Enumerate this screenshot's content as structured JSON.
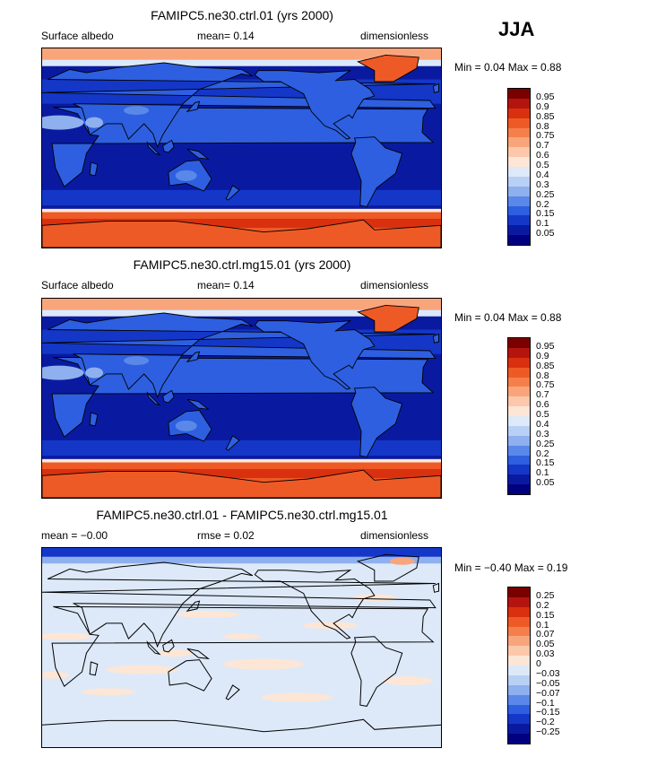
{
  "season": "JJA",
  "panels": [
    {
      "title": "FAMIPC5.ne30.ctrl.01 (yrs 2000)",
      "left_label": "Surface albedo",
      "center_label": "mean=   0.14",
      "right_label": "dimensionless",
      "minmax": "Min =    0.04  Max =    0.88",
      "kind": "albedo",
      "colorbar": {
        "labels": [
          "0.95",
          "0.9",
          "0.85",
          "0.8",
          "0.75",
          "0.7",
          "0.6",
          "0.5",
          "0.4",
          "0.3",
          "0.25",
          "0.2",
          "0.15",
          "0.1",
          "0.05"
        ],
        "colors": [
          "#7a0000",
          "#b3150e",
          "#d9300f",
          "#ee5a26",
          "#f57f4a",
          "#f9a57c",
          "#fcc8ab",
          "#fde6d6",
          "#dde9f8",
          "#b8d0f3",
          "#8fb0ee",
          "#5a88e8",
          "#2d5fe0",
          "#1437c8",
          "#0a1aa0",
          "#000080"
        ]
      }
    },
    {
      "title": "FAMIPC5.ne30.ctrl.mg15.01 (yrs 2000)",
      "left_label": "Surface albedo",
      "center_label": "mean=   0.14",
      "right_label": "dimensionless",
      "minmax": "Min =    0.04  Max =    0.88",
      "kind": "albedo",
      "colorbar": {
        "labels": [
          "0.95",
          "0.9",
          "0.85",
          "0.8",
          "0.75",
          "0.7",
          "0.6",
          "0.5",
          "0.4",
          "0.3",
          "0.25",
          "0.2",
          "0.15",
          "0.1",
          "0.05"
        ],
        "colors": [
          "#7a0000",
          "#b3150e",
          "#d9300f",
          "#ee5a26",
          "#f57f4a",
          "#f9a57c",
          "#fcc8ab",
          "#fde6d6",
          "#dde9f8",
          "#b8d0f3",
          "#8fb0ee",
          "#5a88e8",
          "#2d5fe0",
          "#1437c8",
          "#0a1aa0",
          "#000080"
        ]
      }
    },
    {
      "title": "FAMIPC5.ne30.ctrl.01 - FAMIPC5.ne30.ctrl.mg15.01",
      "left_label": "mean =   −0.00",
      "center_label": "rmse =    0.02",
      "right_label": "dimensionless",
      "minmax": "Min =   −0.40  Max =    0.19",
      "kind": "diff",
      "colorbar": {
        "labels": [
          "0.25",
          "0.2",
          "0.15",
          "0.1",
          "0.07",
          "0.05",
          "0.03",
          "0",
          "−0.03",
          "−0.05",
          "−0.07",
          "−0.1",
          "−0.15",
          "−0.2",
          "−0.25"
        ],
        "colors": [
          "#7a0000",
          "#b3150e",
          "#d9300f",
          "#ee5a26",
          "#f57f4a",
          "#f9a57c",
          "#fcc8ab",
          "#fde6d6",
          "#dde9f8",
          "#b8d0f3",
          "#8fb0ee",
          "#5a88e8",
          "#2d5fe0",
          "#1437c8",
          "#0a1aa0",
          "#000080"
        ]
      }
    }
  ]
}
